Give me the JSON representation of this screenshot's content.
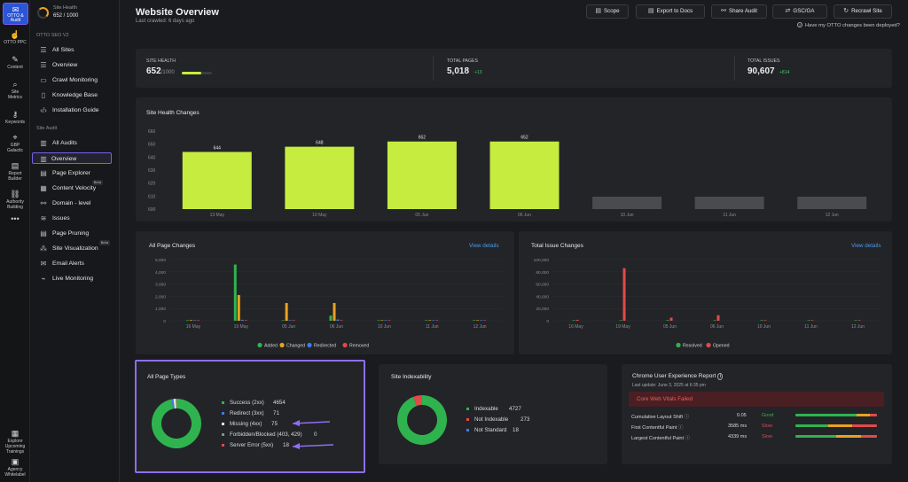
{
  "rail": {
    "otto": "OTTO & Audit",
    "items": [
      {
        "label": "OTTO PPC",
        "icon": "hand-icon"
      },
      {
        "label": "Content",
        "icon": "pen-icon"
      },
      {
        "label": "Site Metrics",
        "icon": "search-icon"
      },
      {
        "label": "Keywords",
        "icon": "key-icon"
      },
      {
        "label": "GBP Galactic",
        "icon": "pin-icon"
      },
      {
        "label": "Report Builder",
        "icon": "doc-icon"
      },
      {
        "label": "Authority Building",
        "icon": "link-icon"
      },
      {
        "label": "•••",
        "icon": "more-icon"
      },
      {
        "label": "Explore Upcoming Trainings",
        "icon": "training-icon"
      },
      {
        "label": "Agency Whitelabel",
        "icon": "agency-icon"
      }
    ]
  },
  "nav": {
    "site_health_label": "Site Health",
    "site_health_value": "652 / 1000",
    "section1": "OTTO SEO V2",
    "section2": "Site Audit",
    "items1": [
      "All Sites",
      "Overview",
      "Crawl Monitoring",
      "Knowledge Base",
      "Installation Guide"
    ],
    "items2": [
      "All Audits",
      "Overview",
      "Page Explorer",
      "Content Velocity",
      "Domain - level",
      "Issues",
      "Page Pruning",
      "Site Visualization",
      "Email Alerts",
      "Live Monitoring"
    ],
    "beta": "Beta"
  },
  "header": {
    "title": "Website Overview",
    "subtitle": "Last crawled: 6 days ago",
    "buttons": [
      "Scope",
      "Export to Docs",
      "Share Audit",
      "GSC/GA",
      "Recrawl Site"
    ],
    "deploy_question": "Have my OTTO changes been deployed?"
  },
  "stats": {
    "health_label": "SITE HEALTH",
    "health_value": "652",
    "health_max": "/1000",
    "health_fraction": 0.652,
    "pages_label": "TOTAL PAGES",
    "pages_value": "5,018",
    "pages_delta": "+13",
    "issues_label": "TOTAL ISSUES",
    "issues_value": "90,607",
    "issues_delta": "+814"
  },
  "health_chart": {
    "title": "Site Health Changes",
    "yticks": [
      "660",
      "650",
      "640",
      "630",
      "620",
      "610",
      "600"
    ],
    "categories": [
      "13 May",
      "19 May",
      "05 Jun",
      "06 Jun",
      "10 Jun",
      "11 Jun",
      "12 Jun"
    ],
    "labels": [
      "644",
      "648",
      "652",
      "652",
      "",
      "",
      ""
    ]
  },
  "page_changes": {
    "title": "All Page Changes",
    "link": "View details",
    "yticks": [
      "5,000",
      "4,000",
      "3,000",
      "2,000",
      "1,000",
      "0"
    ],
    "categories": [
      "16 May",
      "19 May",
      "05 Jun",
      "06 Jun",
      "10 Jun",
      "11 Jun",
      "12 Jun"
    ],
    "legend": [
      "Added",
      "Changed",
      "Redirected",
      "Removed"
    ]
  },
  "issue_changes": {
    "title": "Total Issue Changes",
    "link": "View details",
    "yticks": [
      "100,000",
      "80,000",
      "60,000",
      "40,000",
      "20,000",
      "0"
    ],
    "categories": [
      "16 May",
      "19 May",
      "05 Jun",
      "06 Jun",
      "10 Jun",
      "11 Jun",
      "12 Jun"
    ],
    "legend": [
      "Resolved",
      "Opened"
    ]
  },
  "page_types": {
    "title": "All Page Types",
    "rows": [
      {
        "label": "Success (2xx)",
        "value": "4654"
      },
      {
        "label": "Redirect (3xx)",
        "value": "71"
      },
      {
        "label": "Missing (4xx)",
        "value": "75"
      },
      {
        "label": "Forbidden/Blocked (403, 429)",
        "value": "0"
      },
      {
        "label": "Server Error (5xx)",
        "value": "18"
      }
    ]
  },
  "indexability": {
    "title": "Site Indexability",
    "rows": [
      {
        "label": "Indexable",
        "value": "4727"
      },
      {
        "label": "Not Indexable",
        "value": "273"
      },
      {
        "label": "Not Standard",
        "value": "18"
      }
    ]
  },
  "cwv": {
    "title": "Chrome User Experience Report",
    "update": "Last update: June 3, 2025 at 6:35 pm",
    "banner": "Core Web Vitals Failed",
    "rows": [
      {
        "label": "Cumulative Layout Shift",
        "value": "0.05",
        "status": "Good"
      },
      {
        "label": "First Contentful Paint",
        "value": "3585 ms",
        "status": "Slow"
      },
      {
        "label": "Largest Contentful Paint",
        "value": "4339 ms",
        "status": "Slow"
      }
    ]
  },
  "colors": {
    "lime": "#c6ec3f",
    "green": "#2fb34f",
    "red": "#e24a4a",
    "orange": "#e9a21f",
    "blue": "#3d7ee6",
    "accent": "#7b5cf0"
  },
  "chart_data": [
    {
      "type": "bar",
      "title": "Site Health Changes",
      "categories": [
        "13 May",
        "19 May",
        "05 Jun",
        "06 Jun",
        "10 Jun",
        "11 Jun",
        "12 Jun"
      ],
      "values": [
        644,
        648,
        652,
        652,
        null,
        null,
        null
      ],
      "ylim": [
        600,
        660
      ]
    },
    {
      "type": "bar",
      "title": "All Page Changes",
      "categories": [
        "16 May",
        "19 May",
        "05 Jun",
        "06 Jun",
        "10 Jun",
        "11 Jun",
        "12 Jun"
      ],
      "series": [
        {
          "name": "Added",
          "values": [
            20,
            4600,
            20,
            420,
            5,
            5,
            5
          ]
        },
        {
          "name": "Changed",
          "values": [
            50,
            2100,
            1450,
            1450,
            10,
            10,
            10
          ]
        },
        {
          "name": "Redirected",
          "values": [
            5,
            80,
            5,
            100,
            2,
            2,
            2
          ]
        },
        {
          "name": "Removed",
          "values": [
            5,
            30,
            5,
            30,
            2,
            2,
            2
          ]
        }
      ],
      "ylim": [
        0,
        5000
      ]
    },
    {
      "type": "bar",
      "title": "Total Issue Changes",
      "categories": [
        "16 May",
        "19 May",
        "05 Jun",
        "06 Jun",
        "10 Jun",
        "11 Jun",
        "12 Jun"
      ],
      "series": [
        {
          "name": "Resolved",
          "values": [
            100,
            300,
            1000,
            600,
            100,
            100,
            100
          ]
        },
        {
          "name": "Opened",
          "values": [
            1500,
            86000,
            5000,
            9000,
            600,
            600,
            600
          ]
        }
      ],
      "ylim": [
        0,
        100000
      ]
    },
    {
      "type": "pie",
      "title": "All Page Types",
      "categories": [
        "Success (2xx)",
        "Redirect (3xx)",
        "Missing (4xx)",
        "Forbidden/Blocked (403, 429)",
        "Server Error (5xx)"
      ],
      "values": [
        4654,
        71,
        75,
        0,
        18
      ]
    },
    {
      "type": "pie",
      "title": "Site Indexability",
      "categories": [
        "Indexable",
        "Not Indexable",
        "Not Standard"
      ],
      "values": [
        4727,
        273,
        18
      ]
    }
  ]
}
